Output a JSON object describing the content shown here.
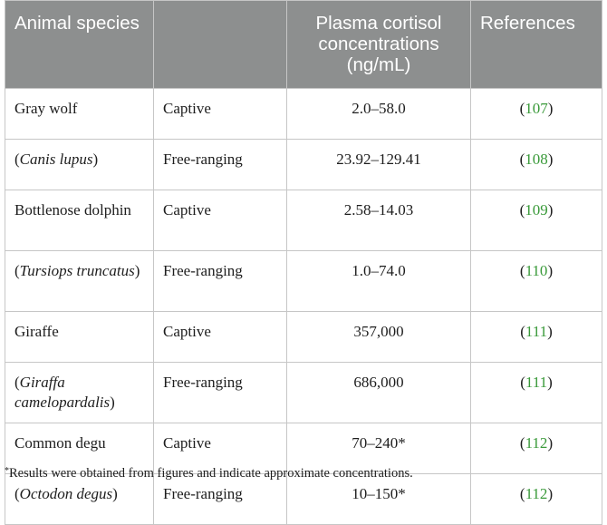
{
  "table": {
    "headers": {
      "species": "Animal species",
      "condition": "",
      "cortisol": "Plasma cortisol concentrations (ng/mL)",
      "references": "References"
    },
    "rows": [
      {
        "species": "Gray wolf",
        "condition": "Captive",
        "cortisol": "2.0–58.0",
        "ref": "107"
      },
      {
        "species": "Canis lupus",
        "condition": "Free-ranging",
        "cortisol": "23.92–129.41",
        "ref": "108"
      },
      {
        "species": "Bottlenose dolphin",
        "condition": "Captive",
        "cortisol": "2.58–14.03",
        "ref": "109"
      },
      {
        "species": "Tursiops truncatus",
        "condition": "Free-ranging",
        "cortisol": "1.0–74.0",
        "ref": "110"
      },
      {
        "species": "Giraffe",
        "condition": "Captive",
        "cortisol": "357,000",
        "ref": "111"
      },
      {
        "species": "Giraffa camelopardalis",
        "condition": "Free-ranging",
        "cortisol": "686,000",
        "ref": "111"
      },
      {
        "species": "Common degu",
        "condition": "Captive",
        "cortisol": "70–240*",
        "ref": "112"
      },
      {
        "species": "Octodon degus",
        "condition": "Free-ranging",
        "cortisol": "10–150*",
        "ref": "112"
      }
    ]
  },
  "footnote": {
    "marker": "*",
    "text": "Results were obtained from figures and indicate approximate concentrations."
  },
  "colors": {
    "header_bg": "#8d8f8f",
    "reference_link": "#3a9a3a",
    "border": "#c6c6c6"
  }
}
